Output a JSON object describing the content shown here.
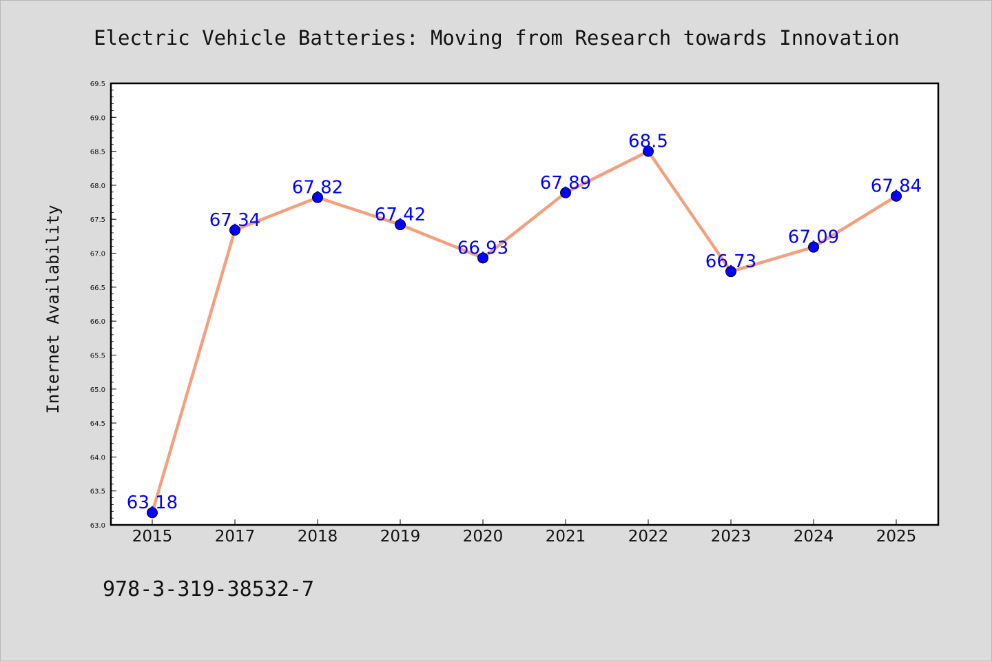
{
  "chart_data": {
    "type": "line",
    "title": "Electric Vehicle Batteries: Moving from Research towards Innovation",
    "xlabel": "",
    "ylabel": "Internet Availability",
    "categories": [
      "2015",
      "2017",
      "2018",
      "2019",
      "2020",
      "2021",
      "2022",
      "2023",
      "2024",
      "2025"
    ],
    "series": [
      {
        "values": [
          63.18,
          67.34,
          67.82,
          67.42,
          66.93,
          67.89,
          68.5,
          66.73,
          67.09,
          67.84
        ],
        "line_color": "#f4a07e",
        "marker_color": "#0000ff"
      }
    ],
    "data_labels": [
      "63.18",
      "67.34",
      "67.82",
      "67.42",
      "66.93",
      "67.89",
      "68.5",
      "66.73",
      "67.09",
      "67.84"
    ],
    "ylim": [
      63.0,
      69.5
    ],
    "yticks": [
      "63.0",
      "63.5",
      "64.0",
      "64.5",
      "65.0",
      "65.5",
      "66.0",
      "66.5",
      "67.0",
      "67.5",
      "68.0",
      "68.5",
      "69.0",
      "69.5"
    ],
    "grid": false,
    "legend": "none"
  },
  "footer": {
    "isbn": "978-3-319-38532-7"
  }
}
